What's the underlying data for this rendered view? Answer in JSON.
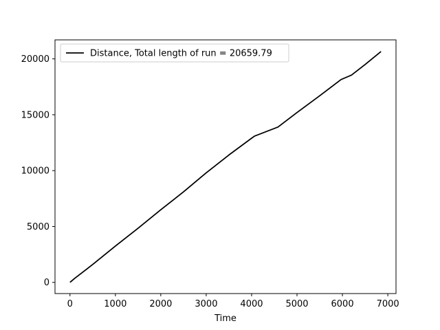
{
  "chart_data": {
    "type": "line",
    "title": "",
    "xlabel": "Time",
    "ylabel": "",
    "xlim": [
      -330,
      7180
    ],
    "ylim": [
      -1000,
      21700
    ],
    "xticks": [
      0,
      1000,
      2000,
      3000,
      4000,
      5000,
      6000,
      7000
    ],
    "yticks": [
      0,
      5000,
      10000,
      15000,
      20000
    ],
    "grid": false,
    "legend_position": "top-left",
    "series": [
      {
        "name": "Distance, Total length of run = 20659.79",
        "color": "#000000",
        "x": [
          0,
          100,
          500,
          1000,
          1500,
          2000,
          2500,
          3000,
          3500,
          4000,
          4070,
          4580,
          5000,
          5500,
          5970,
          6200,
          6500,
          6850
        ],
        "y": [
          0,
          350,
          1600,
          3250,
          4850,
          6500,
          8100,
          9800,
          11400,
          12900,
          13100,
          13900,
          15200,
          16700,
          18150,
          18550,
          19500,
          20659.79
        ]
      }
    ]
  }
}
